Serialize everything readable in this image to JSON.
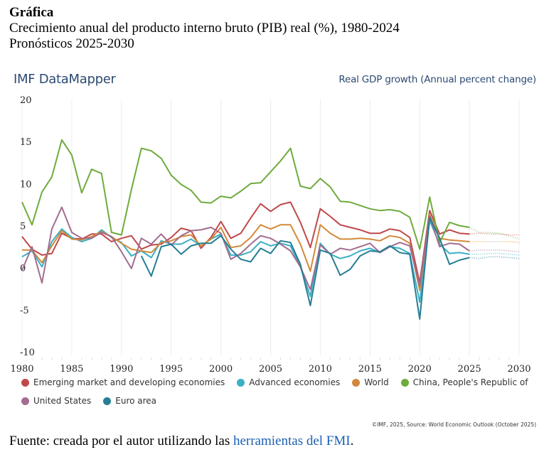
{
  "document": {
    "heading": "Gráfica",
    "subtitle": "Crecimiento anual del producto interno bruto (PIB) real (%), 1980-2024",
    "forecast_note": "Pronósticos 2025-2030"
  },
  "header": {
    "brand": "IMF DataMapper",
    "indicator": "Real GDP growth (Annual percent change)"
  },
  "footer": {
    "copyright": "©IMF, 2025, Source: World Economic Outlook (October 2025)",
    "source_prefix": "Fuente: creada por el autor utilizando las ",
    "source_link": "herramientas del FMI",
    "source_suffix": "."
  },
  "chart_data": {
    "type": "line",
    "title": "Real GDP growth (Annual percent change)",
    "xlabel": "",
    "ylabel": "",
    "xlim": [
      1980,
      2030
    ],
    "ylim": [
      -10,
      20
    ],
    "x_ticks": [
      1980,
      1985,
      1990,
      1995,
      2000,
      2005,
      2010,
      2015,
      2020,
      2025,
      2030
    ],
    "y_ticks": [
      20,
      15,
      10,
      5,
      0,
      -5,
      -10
    ],
    "grid": "vertical",
    "legend_position": "bottom",
    "forecast_start": 2025,
    "series": [
      {
        "name": "Emerging market and developing economies",
        "color": "#c0484b",
        "start": 1980,
        "values": [
          3.7,
          2.2,
          1.5,
          1.7,
          4.1,
          3.5,
          3.4,
          4.0,
          4.0,
          3.1,
          3.5,
          3.8,
          2.2,
          2.7,
          2.8,
          3.6,
          4.7,
          4.4,
          2.3,
          3.6,
          5.5,
          3.5,
          4.1,
          5.9,
          7.6,
          6.7,
          7.5,
          7.8,
          5.4,
          2.4,
          7.0,
          6.1,
          5.1,
          4.8,
          4.5,
          4.1,
          4.1,
          4.6,
          4.4,
          3.6,
          -1.8,
          6.8,
          4.0,
          4.5,
          4.1,
          4.0,
          4.1,
          4.0,
          4.0,
          3.9,
          3.9
        ]
      },
      {
        "name": "Advanced economies",
        "color": "#3bafc4",
        "start": 1980,
        "values": [
          1.3,
          2.0,
          0.1,
          3.1,
          4.6,
          3.6,
          3.1,
          3.5,
          4.5,
          3.6,
          3.0,
          1.4,
          2.0,
          1.2,
          3.2,
          2.8,
          2.8,
          3.4,
          2.6,
          3.4,
          4.0,
          1.5,
          1.5,
          1.9,
          3.1,
          2.6,
          2.9,
          2.6,
          0.1,
          -3.4,
          2.9,
          1.6,
          1.1,
          1.4,
          2.0,
          2.3,
          1.8,
          2.5,
          2.3,
          1.7,
          -4.1,
          5.6,
          2.8,
          1.7,
          1.8,
          1.6,
          1.6,
          1.7,
          1.7,
          1.6,
          1.5
        ]
      },
      {
        "name": "World",
        "color": "#d3893a",
        "start": 1980,
        "values": [
          2.1,
          2.1,
          0.6,
          2.6,
          4.4,
          3.4,
          3.3,
          3.7,
          4.3,
          3.7,
          2.9,
          2.2,
          2.0,
          1.8,
          3.0,
          3.2,
          3.7,
          3.9,
          2.6,
          3.4,
          4.8,
          2.4,
          2.6,
          3.6,
          5.1,
          4.6,
          5.1,
          5.1,
          2.8,
          -0.4,
          5.1,
          4.1,
          3.4,
          3.4,
          3.5,
          3.4,
          3.2,
          3.8,
          3.6,
          2.9,
          -2.7,
          6.3,
          3.5,
          3.3,
          3.2,
          3.1,
          3.1,
          3.1,
          3.1,
          3.1,
          3.0
        ]
      },
      {
        "name": "China, People's Republic of",
        "color": "#6eab3c",
        "start": 1980,
        "values": [
          7.8,
          5.1,
          9.0,
          10.8,
          15.2,
          13.4,
          8.9,
          11.7,
          11.2,
          4.2,
          3.9,
          9.3,
          14.2,
          13.9,
          13.0,
          11.0,
          9.9,
          9.2,
          7.8,
          7.7,
          8.5,
          8.3,
          9.1,
          10.0,
          10.1,
          11.4,
          12.7,
          14.2,
          9.7,
          9.4,
          10.6,
          9.6,
          7.9,
          7.8,
          7.4,
          7.0,
          6.8,
          6.9,
          6.7,
          6.0,
          2.2,
          8.4,
          3.0,
          5.4,
          5.0,
          4.8,
          4.2,
          4.2,
          4.1,
          3.8,
          3.4
        ]
      },
      {
        "name": "United States",
        "color": "#a26d8f",
        "start": 1980,
        "values": [
          -0.3,
          2.5,
          -1.8,
          4.6,
          7.2,
          4.2,
          3.5,
          3.5,
          4.2,
          3.7,
          1.9,
          -0.1,
          3.5,
          2.8,
          4.0,
          2.7,
          3.8,
          4.4,
          4.5,
          4.8,
          4.1,
          1.0,
          1.7,
          2.8,
          3.8,
          3.5,
          2.8,
          2.0,
          0.1,
          -2.6,
          2.7,
          1.6,
          2.3,
          2.1,
          2.5,
          2.9,
          1.8,
          2.5,
          3.0,
          2.6,
          -2.2,
          6.1,
          2.5,
          2.9,
          2.8,
          2.0,
          2.1,
          2.1,
          2.1,
          2.0,
          1.9
        ]
      },
      {
        "name": "Euro area",
        "color": "#267d95",
        "start": 1992,
        "values": [
          1.4,
          -1.0,
          2.5,
          2.8,
          1.6,
          2.6,
          2.9,
          2.9,
          3.8,
          2.2,
          1.0,
          0.7,
          2.3,
          1.7,
          3.2,
          3.0,
          0.4,
          -4.5,
          2.1,
          1.7,
          -0.9,
          -0.2,
          1.4,
          2.0,
          1.9,
          2.6,
          1.8,
          1.6,
          -6.1,
          6.0,
          3.5,
          0.4,
          0.9,
          1.2,
          1.1,
          1.3,
          1.3,
          1.2,
          1.1
        ]
      }
    ]
  },
  "legend": [
    {
      "label": "Emerging market and developing economies",
      "color": "#c0484b"
    },
    {
      "label": "Advanced economies",
      "color": "#3bafc4"
    },
    {
      "label": "World",
      "color": "#d3893a"
    },
    {
      "label": "China, People's Republic of",
      "color": "#6eab3c"
    },
    {
      "label": "United States",
      "color": "#a26d8f"
    },
    {
      "label": "Euro area",
      "color": "#267d95"
    }
  ]
}
